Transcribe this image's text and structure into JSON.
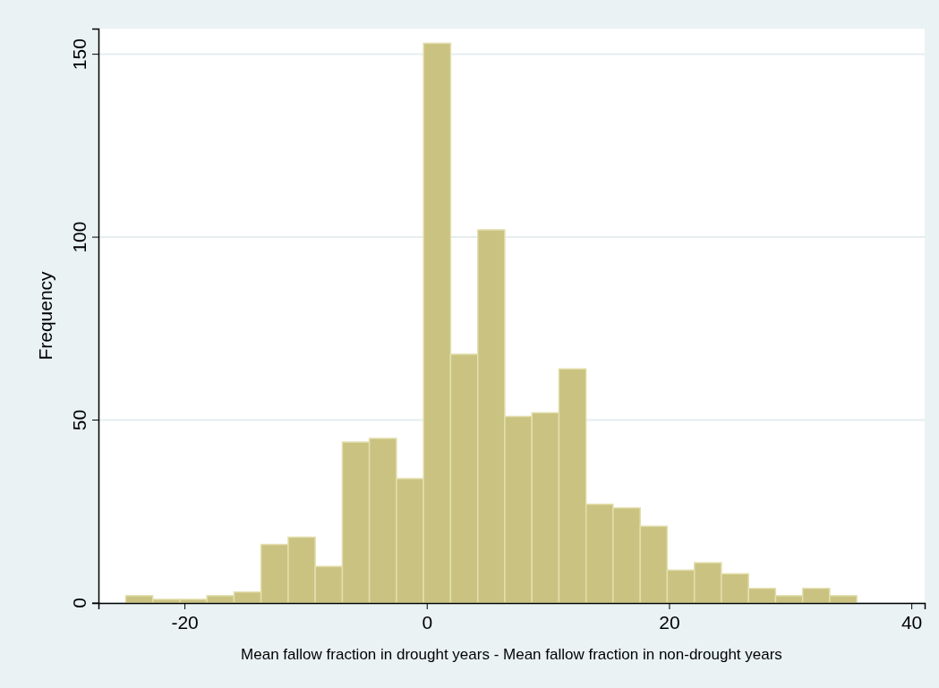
{
  "chart_data": {
    "type": "histogram",
    "xlabel": "Mean fallow fraction in drought years - Mean fallow fraction in non-drought years",
    "ylabel": "Frequency",
    "bins": [
      -24.85,
      -22.62,
      -20.38,
      -18.15,
      -15.91,
      -13.68,
      -11.44,
      -9.21,
      -6.97,
      -4.74,
      -2.5,
      -0.27,
      1.97,
      4.21,
      6.44,
      8.68,
      10.91,
      13.15,
      15.38,
      17.62,
      19.85,
      22.09,
      24.32,
      26.56,
      28.79,
      31.03,
      33.26,
      35.5
    ],
    "values": [
      2,
      1,
      1,
      2,
      3,
      16,
      18,
      10,
      44,
      45,
      34,
      153,
      68,
      102,
      51,
      52,
      64,
      27,
      26,
      21,
      9,
      11,
      8,
      4,
      2,
      4,
      2
    ],
    "color": "#cac280",
    "xlim": [
      -27.1,
      41.1
    ],
    "ylim": [
      0,
      157
    ],
    "xticks": [
      -20,
      0,
      20,
      40
    ],
    "yticks": [
      0,
      50,
      100,
      150
    ],
    "grid": "y"
  }
}
